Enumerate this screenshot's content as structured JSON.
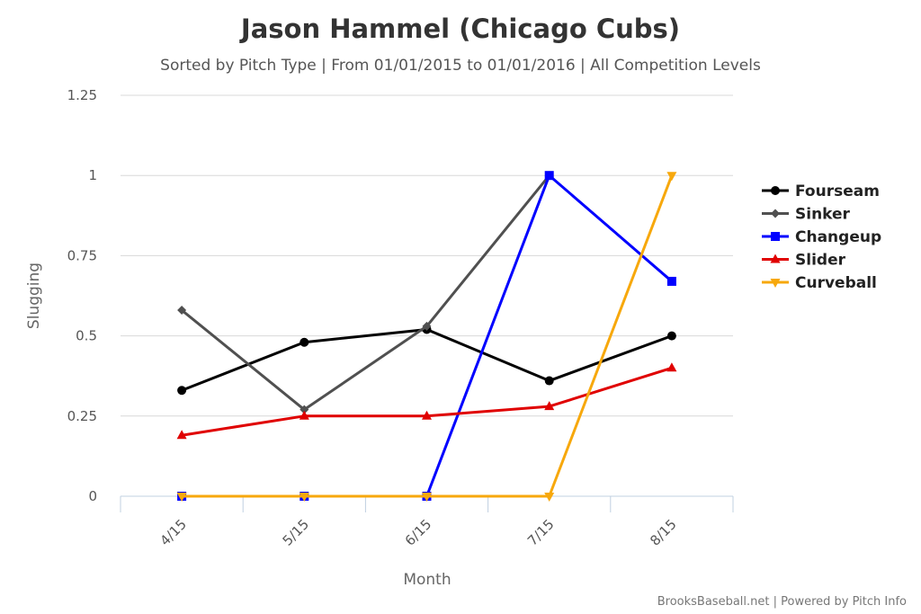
{
  "chart_data": {
    "type": "line",
    "title": "Jason Hammel (Chicago Cubs)",
    "subtitle": "Sorted by Pitch Type | From 01/01/2015 to 01/01/2016 | All Competition Levels",
    "xlabel": "Month",
    "ylabel": "Slugging",
    "categories": [
      "4/15",
      "5/15",
      "6/15",
      "7/15",
      "8/15"
    ],
    "ylim": [
      0,
      1.25
    ],
    "yticks": [
      {
        "value": 0,
        "label": "0"
      },
      {
        "value": 0.25,
        "label": "0.25"
      },
      {
        "value": 0.5,
        "label": "0.5"
      },
      {
        "value": 0.75,
        "label": "0.75"
      },
      {
        "value": 1,
        "label": "1"
      },
      {
        "value": 1.25,
        "label": "1.25"
      }
    ],
    "grid": true,
    "legend_position": "right",
    "series": [
      {
        "name": "Fourseam",
        "color": "#000000",
        "marker": "circle",
        "values": [
          0.33,
          0.48,
          0.52,
          0.36,
          0.5
        ]
      },
      {
        "name": "Sinker",
        "color": "#505050",
        "marker": "diamond",
        "values": [
          0.58,
          0.27,
          0.53,
          1.0,
          null
        ]
      },
      {
        "name": "Changeup",
        "color": "#0000ff",
        "marker": "square",
        "values": [
          0,
          0,
          0,
          1.0,
          0.67
        ]
      },
      {
        "name": "Slider",
        "color": "#e00000",
        "marker": "triangle",
        "values": [
          0.19,
          0.25,
          0.25,
          0.28,
          0.4
        ]
      },
      {
        "name": "Curveball",
        "color": "#f7a80c",
        "marker": "triangle-down",
        "values": [
          0,
          0,
          0,
          0,
          1.0
        ]
      }
    ],
    "credits": "BrooksBaseball.net | Powered by Pitch Info"
  }
}
